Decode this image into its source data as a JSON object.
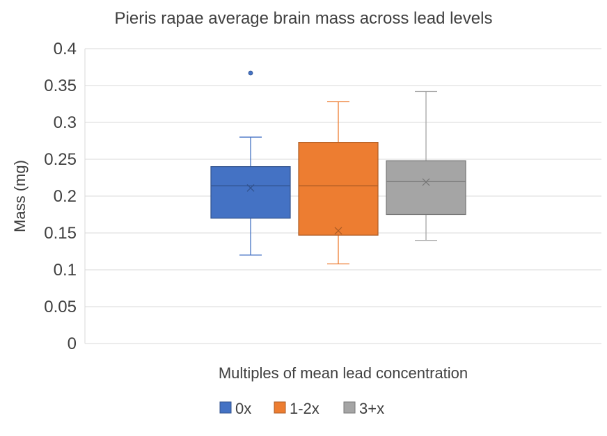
{
  "chart_data": {
    "type": "box",
    "title": "Pieris rapae average brain mass across lead levels",
    "xlabel": "Multiples of mean lead concentration",
    "ylabel": "Mass (mg)",
    "ylim": [
      0,
      0.4
    ],
    "y_ticks": [
      "0",
      "0.05",
      "0.1",
      "0.15",
      "0.2",
      "0.25",
      "0.3",
      "0.35",
      "0.4"
    ],
    "grid": true,
    "legend_position": "bottom",
    "series": [
      {
        "name": "0x",
        "color": "#4472C4",
        "min": 0.12,
        "q1": 0.17,
        "median": 0.214,
        "q3": 0.24,
        "max": 0.28,
        "mean": 0.211,
        "outliers": [
          0.367
        ]
      },
      {
        "name": "1-2x",
        "color": "#ED7D31",
        "min": 0.108,
        "q1": 0.147,
        "median": 0.214,
        "q3": 0.273,
        "max": 0.328,
        "mean": 0.153,
        "outliers": []
      },
      {
        "name": "3+x",
        "color": "#A5A5A5",
        "min": 0.14,
        "q1": 0.175,
        "median": 0.22,
        "q3": 0.248,
        "max": 0.342,
        "mean": 0.219,
        "outliers": []
      }
    ]
  }
}
